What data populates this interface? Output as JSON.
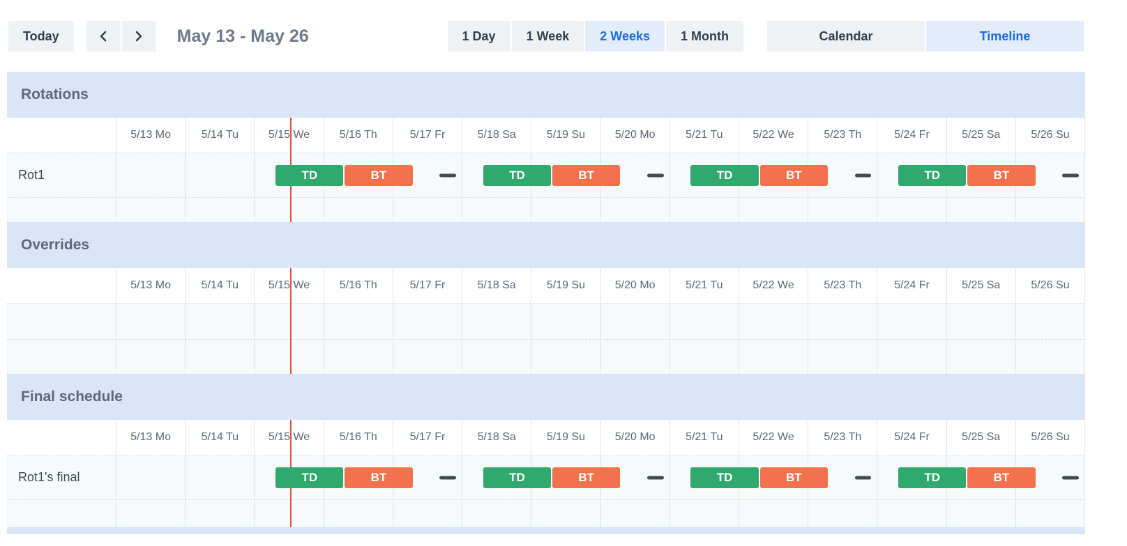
{
  "toolbar": {
    "today_label": "Today",
    "range_label": "May 13 - May 26",
    "view_buttons": [
      {
        "label": "1 Day",
        "active": false
      },
      {
        "label": "1 Week",
        "active": false
      },
      {
        "label": "2 Weeks",
        "active": true
      },
      {
        "label": "1 Month",
        "active": false
      }
    ],
    "mode_buttons": [
      {
        "label": "Calendar",
        "active": false
      },
      {
        "label": "Timeline",
        "active": true
      }
    ]
  },
  "days": [
    "5/13 Mo",
    "5/14 Tu",
    "5/15 We",
    "5/16 Th",
    "5/17 Fr",
    "5/18 Sa",
    "5/19 Su",
    "5/20 Mo",
    "5/21 Tu",
    "5/22 We",
    "5/23 Th",
    "5/24 Fr",
    "5/25 Sa",
    "5/26 Su"
  ],
  "now_marker": {
    "position_days": 2.53
  },
  "colors": {
    "green": "#2fa96d",
    "orange": "#f3724d",
    "now_line": "#e0513d",
    "band_blue": "#dbe5f8",
    "active_bg": "#e2ecfb",
    "active_text": "#1b6ede"
  },
  "sections": [
    {
      "title": "Rotations",
      "rows": [
        {
          "label": "Rot1",
          "blocks": [
            {
              "kind": "shift",
              "label": "TD",
              "color": "green",
              "start": 2.3,
              "end": 3.3
            },
            {
              "kind": "shift",
              "label": "BT",
              "color": "orange",
              "start": 3.3,
              "end": 4.3
            },
            {
              "kind": "gap",
              "start": 4.68,
              "end": 4.92
            },
            {
              "kind": "shift",
              "label": "TD",
              "color": "green",
              "start": 5.3,
              "end": 6.3
            },
            {
              "kind": "shift",
              "label": "BT",
              "color": "orange",
              "start": 6.3,
              "end": 7.3
            },
            {
              "kind": "gap",
              "start": 7.68,
              "end": 7.92
            },
            {
              "kind": "shift",
              "label": "TD",
              "color": "green",
              "start": 8.3,
              "end": 9.3
            },
            {
              "kind": "shift",
              "label": "BT",
              "color": "orange",
              "start": 9.3,
              "end": 10.3
            },
            {
              "kind": "gap",
              "start": 10.68,
              "end": 10.92
            },
            {
              "kind": "shift",
              "label": "TD",
              "color": "green",
              "start": 11.3,
              "end": 12.3
            },
            {
              "kind": "shift",
              "label": "BT",
              "color": "orange",
              "start": 12.3,
              "end": 13.3
            },
            {
              "kind": "gap",
              "start": 13.68,
              "end": 13.92
            }
          ]
        }
      ],
      "filler_rows": [
        36
      ]
    },
    {
      "title": "Overrides",
      "rows": [],
      "filler_rows": [
        52,
        50
      ]
    },
    {
      "title": "Final schedule",
      "rows": [
        {
          "label": "Rot1's final",
          "blocks": [
            {
              "kind": "shift",
              "label": "TD",
              "color": "green",
              "start": 2.3,
              "end": 3.3
            },
            {
              "kind": "shift",
              "label": "BT",
              "color": "orange",
              "start": 3.3,
              "end": 4.3
            },
            {
              "kind": "gap",
              "start": 4.68,
              "end": 4.92
            },
            {
              "kind": "shift",
              "label": "TD",
              "color": "green",
              "start": 5.3,
              "end": 6.3
            },
            {
              "kind": "shift",
              "label": "BT",
              "color": "orange",
              "start": 6.3,
              "end": 7.3
            },
            {
              "kind": "gap",
              "start": 7.68,
              "end": 7.92
            },
            {
              "kind": "shift",
              "label": "TD",
              "color": "green",
              "start": 8.3,
              "end": 9.3
            },
            {
              "kind": "shift",
              "label": "BT",
              "color": "orange",
              "start": 9.3,
              "end": 10.3
            },
            {
              "kind": "gap",
              "start": 10.68,
              "end": 10.92
            },
            {
              "kind": "shift",
              "label": "TD",
              "color": "green",
              "start": 11.3,
              "end": 12.3
            },
            {
              "kind": "shift",
              "label": "BT",
              "color": "orange",
              "start": 12.3,
              "end": 13.3
            },
            {
              "kind": "gap",
              "start": 13.68,
              "end": 13.92
            }
          ]
        }
      ],
      "filler_rows": [
        40
      ]
    }
  ]
}
